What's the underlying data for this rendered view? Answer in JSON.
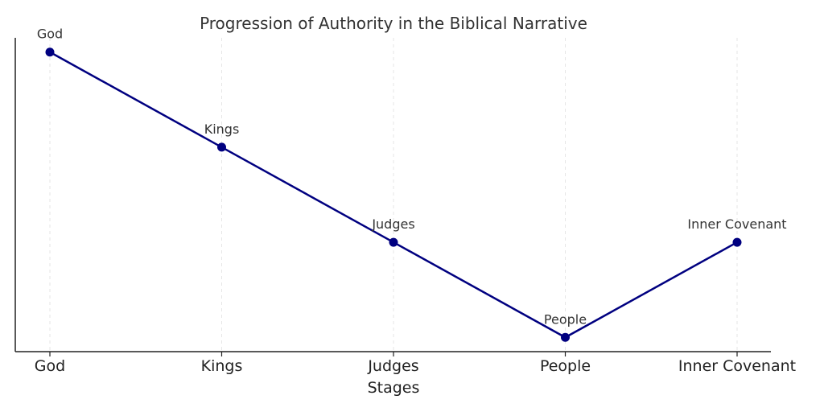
{
  "chart_data": {
    "type": "line",
    "title": "Progression of Authority in the Biblical Narrative",
    "xlabel": "Stages",
    "ylabel": "",
    "categories": [
      "God",
      "Kings",
      "Judges",
      "People",
      "Inner Covenant"
    ],
    "series": [
      {
        "values": [
          4,
          3,
          2,
          1,
          2
        ],
        "point_labels": [
          "God",
          "Kings",
          "Judges",
          "People",
          "Inner Covenant"
        ]
      }
    ],
    "ylim": [
      0.85,
      4.15
    ],
    "grid": "x-only, dashed",
    "legend": "none",
    "colors": {
      "line": "#000080",
      "marker": "#000080"
    }
  }
}
